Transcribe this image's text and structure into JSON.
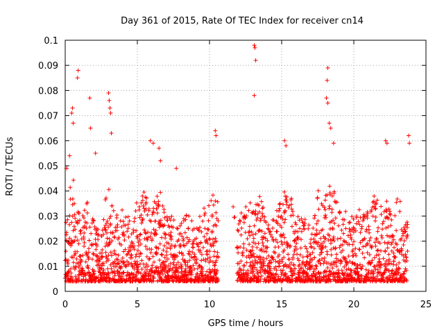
{
  "chart_data": {
    "type": "scatter",
    "title": "Day 361 of 2015, Rate Of TEC Index for receiver cn14",
    "xlabel": "GPS time / hours",
    "ylabel": "ROTI / TECUs",
    "xlim": [
      0,
      25
    ],
    "ylim": [
      0,
      0.1
    ],
    "x_ticks": [
      "0",
      "5",
      "10",
      "15",
      "20",
      "25"
    ],
    "y_ticks": [
      "0",
      "0.01",
      "0.02",
      "0.03",
      "0.04",
      "0.05",
      "0.06",
      "0.07",
      "0.08",
      "0.09",
      "0.1"
    ],
    "x_tick_values": [
      0,
      5,
      10,
      15,
      20,
      25
    ],
    "y_tick_values": [
      0,
      0.01,
      0.02,
      0.03,
      0.04,
      0.05,
      0.06,
      0.07,
      0.08,
      0.09,
      0.1
    ],
    "grid": true,
    "marker": "plus",
    "color": "#ff0000",
    "series": [
      {
        "name": "ROTI",
        "gap_hours": [
          10.6,
          11.9
        ],
        "envelope": [
          [
            0.0,
            0.03
          ],
          [
            0.5,
            0.048
          ],
          [
            1.0,
            0.03
          ],
          [
            1.5,
            0.036
          ],
          [
            2.0,
            0.028
          ],
          [
            2.5,
            0.03
          ],
          [
            3.0,
            0.042
          ],
          [
            3.5,
            0.03
          ],
          [
            4.0,
            0.033
          ],
          [
            4.5,
            0.03
          ],
          [
            5.0,
            0.036
          ],
          [
            5.5,
            0.04
          ],
          [
            6.0,
            0.033
          ],
          [
            6.5,
            0.042
          ],
          [
            7.0,
            0.03
          ],
          [
            7.5,
            0.03
          ],
          [
            8.0,
            0.026
          ],
          [
            8.5,
            0.034
          ],
          [
            9.0,
            0.026
          ],
          [
            9.5,
            0.033
          ],
          [
            10.0,
            0.04
          ],
          [
            10.5,
            0.038
          ],
          [
            12.0,
            0.03
          ],
          [
            12.5,
            0.034
          ],
          [
            13.0,
            0.036
          ],
          [
            13.5,
            0.04
          ],
          [
            14.0,
            0.026
          ],
          [
            14.5,
            0.03
          ],
          [
            15.0,
            0.038
          ],
          [
            15.5,
            0.044
          ],
          [
            16.0,
            0.03
          ],
          [
            16.5,
            0.032
          ],
          [
            17.0,
            0.026
          ],
          [
            17.5,
            0.04
          ],
          [
            18.0,
            0.046
          ],
          [
            18.5,
            0.044
          ],
          [
            19.0,
            0.034
          ],
          [
            19.5,
            0.032
          ],
          [
            20.0,
            0.03
          ],
          [
            20.5,
            0.034
          ],
          [
            21.0,
            0.034
          ],
          [
            21.5,
            0.04
          ],
          [
            22.0,
            0.034
          ],
          [
            22.5,
            0.04
          ],
          [
            23.0,
            0.042
          ],
          [
            23.5,
            0.03
          ]
        ],
        "peaks": [
          [
            0.1,
            0.049
          ],
          [
            0.3,
            0.054
          ],
          [
            0.45,
            0.071
          ],
          [
            0.5,
            0.073
          ],
          [
            0.55,
            0.067
          ],
          [
            0.9,
            0.088
          ],
          [
            0.85,
            0.085
          ],
          [
            1.7,
            0.077
          ],
          [
            1.75,
            0.065
          ],
          [
            2.1,
            0.055
          ],
          [
            3.0,
            0.079
          ],
          [
            3.05,
            0.076
          ],
          [
            3.1,
            0.073
          ],
          [
            3.15,
            0.071
          ],
          [
            3.2,
            0.063
          ],
          [
            5.9,
            0.06
          ],
          [
            6.1,
            0.059
          ],
          [
            6.5,
            0.057
          ],
          [
            6.6,
            0.052
          ],
          [
            7.7,
            0.049
          ],
          [
            10.4,
            0.064
          ],
          [
            10.45,
            0.062
          ],
          [
            13.1,
            0.098
          ],
          [
            13.15,
            0.097
          ],
          [
            13.2,
            0.092
          ],
          [
            13.1,
            0.078
          ],
          [
            15.2,
            0.06
          ],
          [
            15.3,
            0.058
          ],
          [
            18.2,
            0.089
          ],
          [
            18.15,
            0.084
          ],
          [
            18.1,
            0.077
          ],
          [
            18.2,
            0.075
          ],
          [
            18.3,
            0.067
          ],
          [
            18.4,
            0.065
          ],
          [
            18.6,
            0.059
          ],
          [
            22.2,
            0.06
          ],
          [
            22.3,
            0.059
          ],
          [
            23.8,
            0.062
          ],
          [
            23.85,
            0.059
          ]
        ],
        "baseline_min": 0.004
      }
    ]
  }
}
